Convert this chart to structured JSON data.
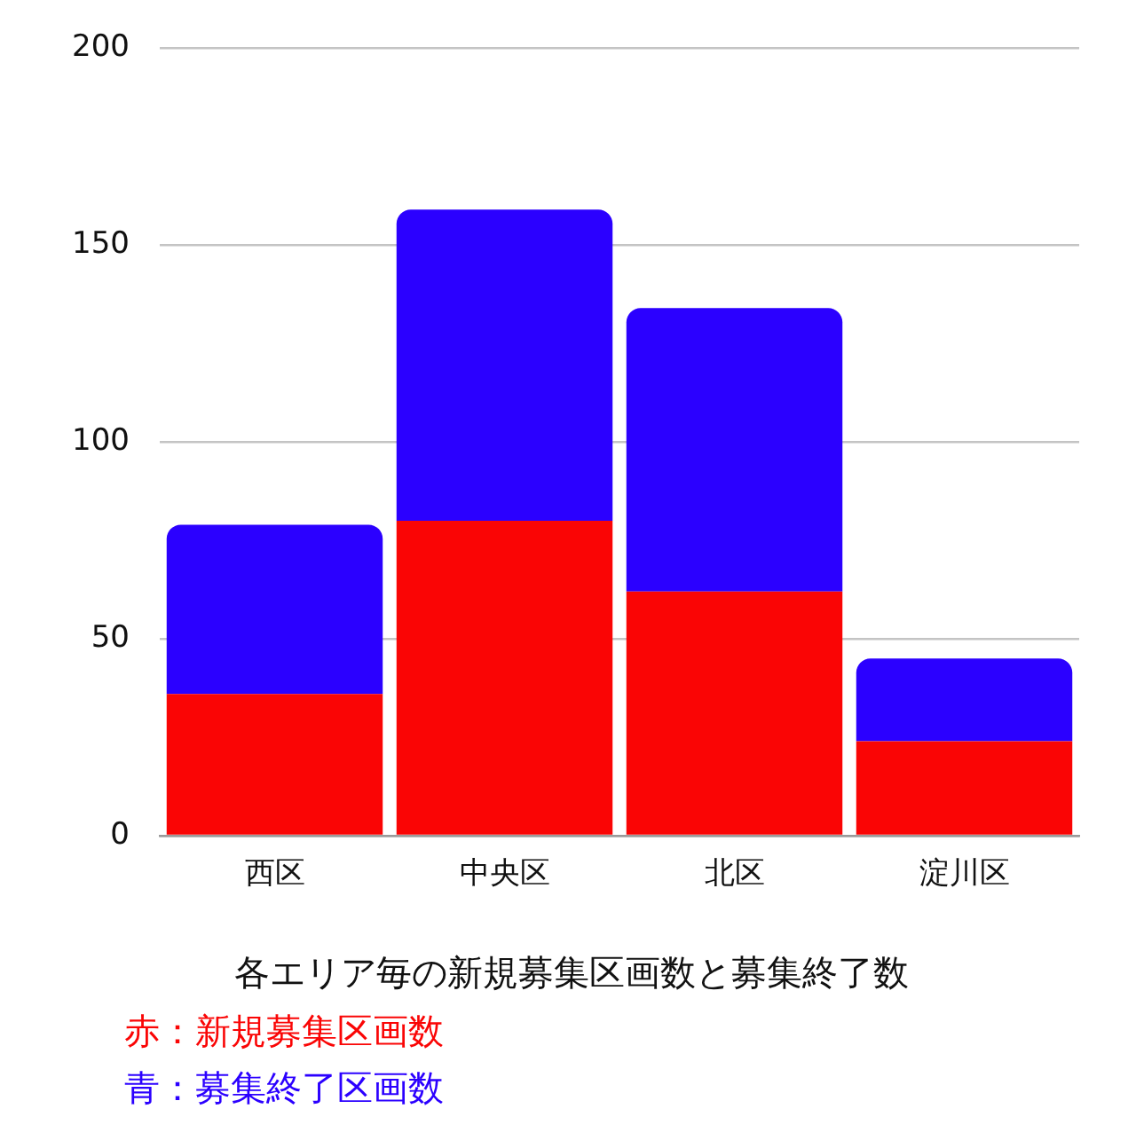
{
  "chart_data": {
    "type": "bar",
    "title": "各エリア毎の新規募集区画数と募集終了数",
    "categories": [
      "西区",
      "中央区",
      "北区",
      "淀川区"
    ],
    "series": [
      {
        "name": "赤：新規募集区画数",
        "color": "#fa0505",
        "values": [
          36,
          80,
          62,
          24
        ]
      },
      {
        "name": "青：募集終了区画数",
        "color": "#2b00ff",
        "values": [
          43,
          79,
          72,
          21
        ]
      }
    ],
    "stacked": true,
    "ylim": [
      0,
      200
    ],
    "yticks": [
      0,
      50,
      100,
      150,
      200
    ],
    "grid": "y",
    "legend": "bottom"
  }
}
